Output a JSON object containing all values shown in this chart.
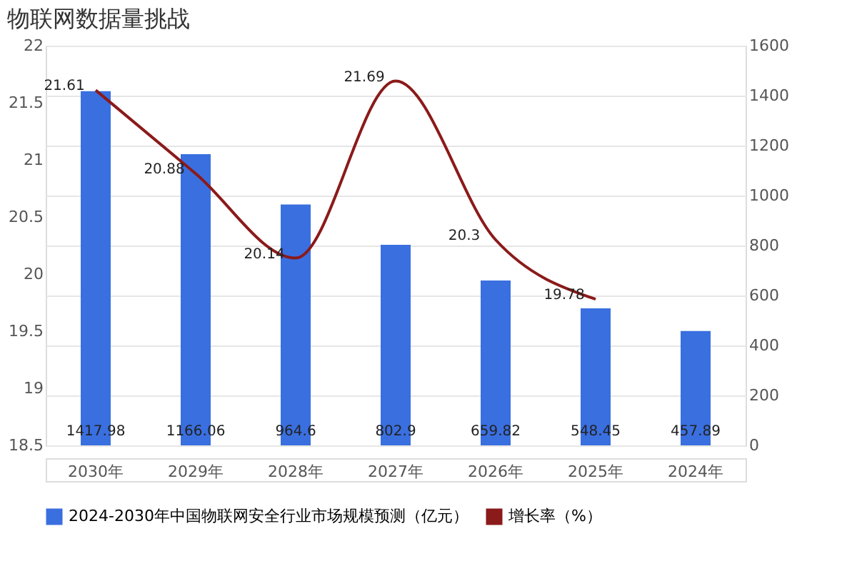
{
  "chart_data": {
    "type": "bar",
    "title": "物联网数据量挑战",
    "categories": [
      "2030年",
      "2029年",
      "2028年",
      "2027年",
      "2026年",
      "2025年",
      "2024年"
    ],
    "series": [
      {
        "name": "2024-2030年中国物联网安全行业市场规模预测（亿元）",
        "axis": "y2",
        "color": "#3a6fe0",
        "values": [
          1417.98,
          1166.06,
          964.6,
          802.9,
          659.82,
          548.45,
          457.89
        ]
      },
      {
        "name": "增长率（%）",
        "type": "line",
        "axis": "y",
        "color": "#8b1a1a",
        "values": [
          21.61,
          20.88,
          20.14,
          21.69,
          20.3,
          19.78,
          null
        ]
      }
    ],
    "ylim": [
      18.5,
      22
    ],
    "yticks": [
      18.5,
      19,
      19.5,
      20,
      20.5,
      21,
      21.5,
      22
    ],
    "y2lim": [
      0,
      1600
    ],
    "y2ticks": [
      0,
      200,
      400,
      600,
      800,
      1000,
      1200,
      1400,
      1600
    ],
    "grid": "y2",
    "legend": "bottom",
    "data_labels": true,
    "marker": "none",
    "line_style": "solid"
  }
}
